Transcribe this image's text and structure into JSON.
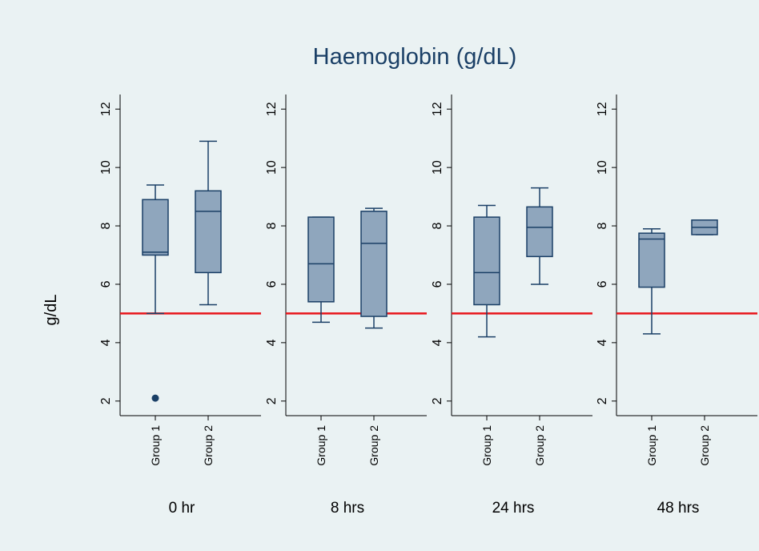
{
  "chart_data": {
    "type": "box",
    "title": "Haemoglobin (g/dL)",
    "ylabel": "g/dL",
    "ylim": [
      1.5,
      12.5
    ],
    "yticks": [
      2,
      4,
      6,
      8,
      10,
      12
    ],
    "reference_line": {
      "value": 5,
      "color": "#e8141a"
    },
    "colors": {
      "box_fill": "#8fa6bd",
      "box_stroke": "#1a3f66",
      "background": "#eaf2f3",
      "title": "#1a3f66"
    },
    "categories": [
      "Group 1",
      "Group 2"
    ],
    "panels": [
      {
        "label": "0 hr",
        "boxes": [
          {
            "group": "Group 1",
            "whisker_low": 5.0,
            "q1": 7.0,
            "median": 7.1,
            "q3": 8.9,
            "whisker_high": 9.4,
            "outliers": [
              2.1
            ]
          },
          {
            "group": "Group 2",
            "whisker_low": 5.3,
            "q1": 6.4,
            "median": 8.5,
            "q3": 9.2,
            "whisker_high": 10.9,
            "outliers": []
          }
        ]
      },
      {
        "label": "8 hrs",
        "boxes": [
          {
            "group": "Group 1",
            "whisker_low": 4.7,
            "q1": 5.4,
            "median": 6.7,
            "q3": 8.3,
            "whisker_high": 8.3,
            "outliers": []
          },
          {
            "group": "Group 2",
            "whisker_low": 4.5,
            "q1": 4.9,
            "median": 7.4,
            "q3": 8.5,
            "whisker_high": 8.6,
            "outliers": []
          }
        ]
      },
      {
        "label": "24 hrs",
        "boxes": [
          {
            "group": "Group 1",
            "whisker_low": 4.2,
            "q1": 5.3,
            "median": 6.4,
            "q3": 8.3,
            "whisker_high": 8.7,
            "outliers": []
          },
          {
            "group": "Group 2",
            "whisker_low": 6.0,
            "q1": 6.95,
            "median": 7.95,
            "q3": 8.65,
            "whisker_high": 9.3,
            "outliers": []
          }
        ]
      },
      {
        "label": "48 hrs",
        "boxes": [
          {
            "group": "Group 1",
            "whisker_low": 4.3,
            "q1": 5.9,
            "median": 7.55,
            "q3": 7.75,
            "whisker_high": 7.9,
            "outliers": []
          },
          {
            "group": "Group 2",
            "whisker_low": 7.7,
            "q1": 7.7,
            "median": 7.95,
            "q3": 8.2,
            "whisker_high": 8.2,
            "outliers": []
          }
        ]
      }
    ]
  }
}
